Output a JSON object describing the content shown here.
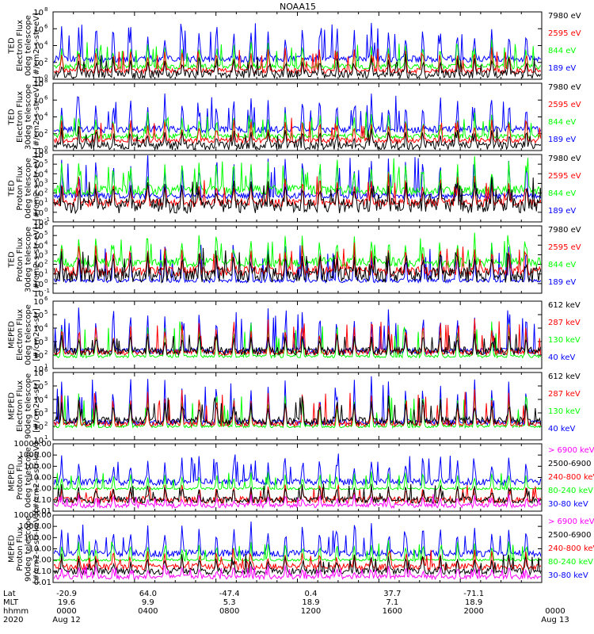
{
  "title": "NOAA15",
  "colors": {
    "black": "#000000",
    "red": "#ff0000",
    "green": "#00ff00",
    "blue": "#0000ff",
    "magenta": "#ff00ff"
  },
  "chart_data": [
    {
      "type": "line",
      "name": "ted-electron-0deg",
      "ylabel": [
        "TED",
        "Electron Flux",
        "0deg telescope",
        "[#/cm2-s-str-eV]"
      ],
      "yscale": "log",
      "ylim_exp": [
        0,
        8
      ],
      "yticks": [
        {
          "base": "10",
          "exp": "8"
        },
        {
          "base": "10",
          "exp": "6"
        },
        {
          "base": "10",
          "exp": "4"
        },
        {
          "base": "10",
          "exp": "2"
        },
        {
          "base": "10",
          "exp": "0"
        }
      ],
      "series": [
        {
          "name": "7980 eV",
          "color": "black",
          "base": 0.6,
          "spike": 2.2,
          "noise": 0.5
        },
        {
          "name": "2595 eV",
          "color": "red",
          "base": 1.0,
          "spike": 2.8,
          "noise": 0.3
        },
        {
          "name": "844 eV",
          "color": "green",
          "base": 1.5,
          "spike": 3.2,
          "noise": 0.3
        },
        {
          "name": "189 eV",
          "color": "blue",
          "base": 2.4,
          "spike": 4.5,
          "noise": 0.4
        }
      ]
    },
    {
      "type": "line",
      "name": "ted-electron-30deg",
      "ylabel": [
        "TED",
        "Electron Flux",
        "30deg telescope",
        "[#/cm2-s-str-eV]"
      ],
      "yscale": "log",
      "ylim_exp": [
        0,
        8
      ],
      "yticks": [
        {
          "base": "10",
          "exp": "8"
        },
        {
          "base": "10",
          "exp": "6"
        },
        {
          "base": "10",
          "exp": "4"
        },
        {
          "base": "10",
          "exp": "2"
        },
        {
          "base": "10",
          "exp": "0"
        }
      ],
      "series": [
        {
          "name": "7980 eV",
          "color": "black",
          "base": 0.6,
          "spike": 2.0,
          "noise": 0.5
        },
        {
          "name": "2595 eV",
          "color": "red",
          "base": 1.2,
          "spike": 2.6,
          "noise": 0.3
        },
        {
          "name": "844 eV",
          "color": "green",
          "base": 1.7,
          "spike": 3.0,
          "noise": 0.3
        },
        {
          "name": "189 eV",
          "color": "blue",
          "base": 2.5,
          "spike": 4.3,
          "noise": 0.4
        }
      ]
    },
    {
      "type": "line",
      "name": "ted-proton-0deg",
      "ylabel": [
        "TED",
        "Proton Flux",
        "0deg telescope",
        "[#/cm2-s-str-eV]"
      ],
      "yscale": "log",
      "ylim_exp": [
        -1,
        6
      ],
      "yticks": [
        {
          "base": "10",
          "exp": "6"
        },
        {
          "base": "10",
          "exp": "5"
        },
        {
          "base": "10",
          "exp": "4"
        },
        {
          "base": "10",
          "exp": "3"
        },
        {
          "base": "10",
          "exp": "2"
        },
        {
          "base": "10",
          "exp": "1"
        },
        {
          "base": "10",
          "exp": "0"
        },
        {
          "base": "10",
          "exp": "-1"
        }
      ],
      "series": [
        {
          "name": "7980 eV",
          "color": "black",
          "base": 0.7,
          "spike": 2.5,
          "noise": 0.8
        },
        {
          "name": "2595 eV",
          "color": "red",
          "base": 1.0,
          "spike": 2.8,
          "noise": 0.4
        },
        {
          "name": "844 eV",
          "color": "green",
          "base": 2.3,
          "spike": 3.2,
          "noise": 0.5
        },
        {
          "name": "189 eV",
          "color": "blue",
          "base": 1.7,
          "spike": 4.5,
          "noise": 0.3
        }
      ]
    },
    {
      "type": "line",
      "name": "ted-proton-30deg",
      "ylabel": [
        "TED",
        "Proton Flux",
        "30deg telescope",
        "[#/cm2-s-str-eV]"
      ],
      "yscale": "log",
      "ylim_exp": [
        -1,
        6
      ],
      "yticks": [
        {
          "base": "10",
          "exp": "6"
        },
        {
          "base": "10",
          "exp": "5"
        },
        {
          "base": "10",
          "exp": "4"
        },
        {
          "base": "10",
          "exp": "3"
        },
        {
          "base": "10",
          "exp": "2"
        },
        {
          "base": "10",
          "exp": "1"
        },
        {
          "base": "10",
          "exp": "0"
        },
        {
          "base": "10",
          "exp": "-1"
        }
      ],
      "series": [
        {
          "name": "7980 eV",
          "color": "black",
          "base": 0.9,
          "spike": 2.5,
          "noise": 0.8
        },
        {
          "name": "2595 eV",
          "color": "red",
          "base": 1.3,
          "spike": 2.8,
          "noise": 0.5
        },
        {
          "name": "844 eV",
          "color": "green",
          "base": 2.2,
          "spike": 3.0,
          "noise": 0.5
        },
        {
          "name": "189 eV",
          "color": "blue",
          "base": 0.3,
          "spike": 4.0,
          "noise": 0.2
        }
      ]
    },
    {
      "type": "line",
      "name": "meped-electron-0deg",
      "ylabel": [
        "MEPED",
        "Electron Flux",
        "0deg telescope",
        "[#/cm2-s-str]"
      ],
      "yscale": "log",
      "ylim_exp": [
        1,
        6
      ],
      "yticks": [
        {
          "base": "10",
          "exp": "6"
        },
        {
          "base": "10",
          "exp": "5"
        },
        {
          "base": "10",
          "exp": "4"
        },
        {
          "base": "10",
          "exp": "3"
        },
        {
          "base": "10",
          "exp": "2"
        },
        {
          "base": "10",
          "exp": "1"
        }
      ],
      "series": [
        {
          "name": "612 keV",
          "color": "black",
          "base": 2.3,
          "spike": 1.4,
          "noise": 0.3
        },
        {
          "name": "287 keV",
          "color": "red",
          "base": 2.2,
          "spike": 2.5,
          "noise": 0.2
        },
        {
          "name": "130 keV",
          "color": "green",
          "base": 1.9,
          "spike": 2.6,
          "noise": 0.1
        },
        {
          "name": "40 keV",
          "color": "blue",
          "base": 2.3,
          "spike": 3.4,
          "noise": 0.2
        }
      ]
    },
    {
      "type": "line",
      "name": "meped-electron-90deg",
      "ylabel": [
        "MEPED",
        "Electron Flux",
        "90deg telescope",
        "[#/cm2-s-str]"
      ],
      "yscale": "log",
      "ylim_exp": [
        1,
        6
      ],
      "yticks": [
        {
          "base": "10",
          "exp": "6"
        },
        {
          "base": "10",
          "exp": "5"
        },
        {
          "base": "10",
          "exp": "4"
        },
        {
          "base": "10",
          "exp": "3"
        },
        {
          "base": "10",
          "exp": "2"
        },
        {
          "base": "10",
          "exp": "1"
        }
      ],
      "series": [
        {
          "name": "612 keV",
          "color": "black",
          "base": 2.4,
          "spike": 1.8,
          "noise": 0.3
        },
        {
          "name": "287 keV",
          "color": "red",
          "base": 2.2,
          "spike": 2.5,
          "noise": 0.2
        },
        {
          "name": "130 keV",
          "color": "green",
          "base": 2.0,
          "spike": 2.7,
          "noise": 0.1
        },
        {
          "name": "40 keV",
          "color": "blue",
          "base": 2.3,
          "spike": 3.4,
          "noise": 0.2
        }
      ]
    },
    {
      "type": "line",
      "name": "meped-proton-0deg",
      "ylabel": [
        "MEPED",
        "Proton Flux",
        "0deg telescope",
        "[#/cm2-s-str-keV]"
      ],
      "yscale": "log",
      "ylim_exp": [
        -2,
        4
      ],
      "yticks": [
        {
          "label": "10000.00"
        },
        {
          "label": "1000.00"
        },
        {
          "label": "100.00"
        },
        {
          "label": "10.00"
        },
        {
          "label": "1.00"
        },
        {
          "label": "0.10"
        },
        {
          "label": "0.01"
        }
      ],
      "series": [
        {
          "name": "> 6900 keV",
          "color": "magenta",
          "base": -1.5,
          "spike": 1.0,
          "noise": 0.2
        },
        {
          "name": "2500-6900",
          "color": "black",
          "base": -1.0,
          "spike": 1.5,
          "noise": 0.3
        },
        {
          "name": "240-800 keV",
          "color": "red",
          "base": -1.0,
          "spike": 1.3,
          "noise": 0.3
        },
        {
          "name": "80-240 keV",
          "color": "green",
          "base": 0.0,
          "spike": 1.6,
          "noise": 0.1
        },
        {
          "name": "30-80 keV",
          "color": "blue",
          "base": 0.6,
          "spike": 2.5,
          "noise": 0.3
        }
      ]
    },
    {
      "type": "line",
      "name": "meped-proton-90deg",
      "ylabel": [
        "MEPED",
        "Proton Flux",
        "90deg telescope",
        "[#/cm2-s-str-keV]"
      ],
      "yscale": "log",
      "ylim_exp": [
        -2,
        4
      ],
      "yticks": [
        {
          "label": "10000.00"
        },
        {
          "label": "1000.00"
        },
        {
          "label": "100.00"
        },
        {
          "label": "10.00"
        },
        {
          "label": "1.00"
        },
        {
          "label": "0.10"
        },
        {
          "label": "0.01"
        }
      ],
      "series": [
        {
          "name": "> 6900 keV",
          "color": "magenta",
          "base": -1.5,
          "spike": 1.0,
          "noise": 0.2
        },
        {
          "name": "2500-6900",
          "color": "black",
          "base": -1.0,
          "spike": 1.5,
          "noise": 0.3
        },
        {
          "name": "240-800 keV",
          "color": "red",
          "base": -0.6,
          "spike": 1.5,
          "noise": 0.3
        },
        {
          "name": "80-240 keV",
          "color": "green",
          "base": 0.0,
          "spike": 1.8,
          "noise": 0.1
        },
        {
          "name": "30-80 keV",
          "color": "blue",
          "base": 0.6,
          "spike": 2.7,
          "noise": 0.3
        }
      ]
    }
  ],
  "footer": {
    "row_labels": [
      "Lat",
      "MLT",
      "hhmm",
      "2020"
    ],
    "columns": [
      {
        "lat": "-20.9",
        "mlt": "19.6",
        "hhmm": "0000",
        "date": "Aug 12"
      },
      {
        "lat": "64.0",
        "mlt": "9.9",
        "hhmm": "0400",
        "date": ""
      },
      {
        "lat": "-47.4",
        "mlt": "5.3",
        "hhmm": "0800",
        "date": ""
      },
      {
        "lat": "0.4",
        "mlt": "18.9",
        "hhmm": "1200",
        "date": ""
      },
      {
        "lat": "37.7",
        "mlt": "7.1",
        "hhmm": "1600",
        "date": ""
      },
      {
        "lat": "-71.1",
        "mlt": "18.9",
        "hhmm": "2000",
        "date": ""
      },
      {
        "lat": "",
        "mlt": "",
        "hhmm": "0000",
        "date": "Aug 13"
      }
    ]
  }
}
